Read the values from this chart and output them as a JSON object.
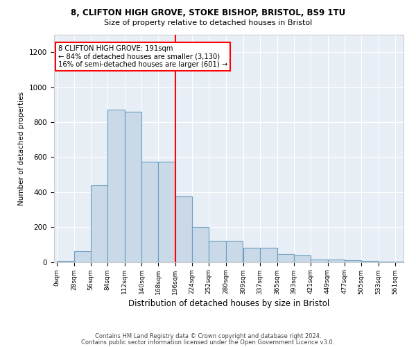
{
  "title1": "8, CLIFTON HIGH GROVE, STOKE BISHOP, BRISTOL, BS9 1TU",
  "title2": "Size of property relative to detached houses in Bristol",
  "xlabel": "Distribution of detached houses by size in Bristol",
  "ylabel": "Number of detached properties",
  "bar_color": "#c9d9e8",
  "bar_edge_color": "#6a9ec0",
  "bg_color": "#e8eef5",
  "annotation_text": "8 CLIFTON HIGH GROVE: 191sqm\n← 84% of detached houses are smaller (3,130)\n16% of semi-detached houses are larger (601) →",
  "bins": [
    0,
    28,
    56,
    84,
    112,
    140,
    168,
    196,
    224,
    252,
    280,
    309,
    337,
    365,
    393,
    421,
    449,
    477,
    505,
    533,
    561
  ],
  "values": [
    5,
    60,
    440,
    870,
    860,
    575,
    575,
    375,
    200,
    120,
    120,
    80,
    80,
    47,
    37,
    15,
    15,
    10,
    5,
    2,
    1
  ],
  "property_line_bin": 7,
  "ylim": [
    0,
    1300
  ],
  "yticks": [
    0,
    200,
    400,
    600,
    800,
    1000,
    1200
  ],
  "footer1": "Contains HM Land Registry data © Crown copyright and database right 2024.",
  "footer2": "Contains public sector information licensed under the Open Government Licence v3.0."
}
